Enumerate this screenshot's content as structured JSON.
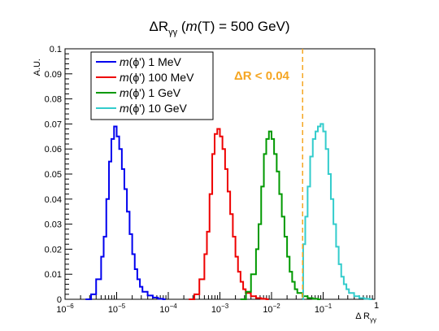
{
  "chart_data": {
    "type": "line",
    "title": {
      "prefix": "ΔR",
      "sub": "γγ",
      "suffix": " (",
      "italic": "m",
      "rest": "(T) = 500 GeV)"
    },
    "xlabel": {
      "prefix": "Δ R",
      "sub": "γγ"
    },
    "ylabel": "A.U.",
    "x_scale": "log",
    "xlim": [
      1e-06,
      1
    ],
    "ylim": [
      0,
      0.1
    ],
    "x_ticks": [
      {
        "base": "10",
        "exp": "−6",
        "value": 1e-06
      },
      {
        "base": "10",
        "exp": "−5",
        "value": 1e-05
      },
      {
        "base": "10",
        "exp": "−4",
        "value": 0.0001
      },
      {
        "base": "10",
        "exp": "−3",
        "value": 0.001
      },
      {
        "base": "10",
        "exp": "−2",
        "value": 0.01
      },
      {
        "base": "10",
        "exp": "−1",
        "value": 0.1
      },
      {
        "base": "",
        "exp": "1",
        "value": 1
      }
    ],
    "y_ticks": [
      "0",
      "0.01",
      "0.02",
      "0.03",
      "0.04",
      "0.05",
      "0.06",
      "0.07",
      "0.08",
      "0.09",
      "0.1"
    ],
    "grid": false,
    "legend_position": "top-left",
    "annotation": {
      "text": "ΔR < 0.04",
      "x_line": 0.04,
      "color": "#f5a623"
    },
    "series": [
      {
        "name_italic": "m",
        "name_rest": "(ϕ') 1 MeV",
        "color": "#0000ee",
        "points": [
          [
            2.5e-06,
            0
          ],
          [
            3.2e-06,
            0.002
          ],
          [
            4e-06,
            0.008
          ],
          [
            5e-06,
            0.017
          ],
          [
            5.6e-06,
            0.025
          ],
          [
            6.3e-06,
            0.04
          ],
          [
            7.1e-06,
            0.055
          ],
          [
            7.9e-06,
            0.064
          ],
          [
            8.9e-06,
            0.069
          ],
          [
            1e-05,
            0.065
          ],
          [
            1.12e-05,
            0.06
          ],
          [
            1.26e-05,
            0.052
          ],
          [
            1.41e-05,
            0.044
          ],
          [
            1.58e-05,
            0.035
          ],
          [
            1.78e-05,
            0.026
          ],
          [
            2e-05,
            0.018
          ],
          [
            2.24e-05,
            0.012
          ],
          [
            2.51e-05,
            0.008
          ],
          [
            2.82e-05,
            0.005
          ],
          [
            3.16e-05,
            0.003
          ],
          [
            3.98e-05,
            0.0015
          ],
          [
            5.01e-05,
            0.0007
          ],
          [
            6.31e-05,
            0.0002
          ],
          [
            7.94e-05,
            0.0
          ]
        ]
      },
      {
        "name_italic": "m",
        "name_rest": "(ϕ') 100 MeV",
        "color": "#ee0000",
        "points": [
          [
            0.00025,
            0
          ],
          [
            0.00032,
            0.002
          ],
          [
            0.0004,
            0.008
          ],
          [
            0.0005,
            0.018
          ],
          [
            0.00056,
            0.027
          ],
          [
            0.00063,
            0.042
          ],
          [
            0.00071,
            0.058
          ],
          [
            0.00079,
            0.066
          ],
          [
            0.00089,
            0.068
          ],
          [
            0.001,
            0.065
          ],
          [
            0.00112,
            0.06
          ],
          [
            0.00126,
            0.052
          ],
          [
            0.00141,
            0.043
          ],
          [
            0.00158,
            0.034
          ],
          [
            0.00178,
            0.025
          ],
          [
            0.002,
            0.017
          ],
          [
            0.00224,
            0.011
          ],
          [
            0.00251,
            0.007
          ],
          [
            0.00282,
            0.004
          ],
          [
            0.00316,
            0.0025
          ],
          [
            0.00398,
            0.0012
          ],
          [
            0.00501,
            0.0005
          ],
          [
            0.00631,
            0.0002
          ],
          [
            0.00794,
            0.0
          ]
        ]
      },
      {
        "name_italic": "m",
        "name_rest": "(ϕ') 1 GeV",
        "color": "#009900",
        "points": [
          [
            0.0025,
            0
          ],
          [
            0.0032,
            0.003
          ],
          [
            0.004,
            0.01
          ],
          [
            0.005,
            0.02
          ],
          [
            0.0056,
            0.03
          ],
          [
            0.0063,
            0.045
          ],
          [
            0.0071,
            0.058
          ],
          [
            0.0079,
            0.064
          ],
          [
            0.0089,
            0.067
          ],
          [
            0.01,
            0.064
          ],
          [
            0.0112,
            0.058
          ],
          [
            0.0126,
            0.051
          ],
          [
            0.0141,
            0.042
          ],
          [
            0.0158,
            0.033
          ],
          [
            0.0178,
            0.025
          ],
          [
            0.02,
            0.017
          ],
          [
            0.0224,
            0.011
          ],
          [
            0.0251,
            0.007
          ],
          [
            0.0282,
            0.004
          ],
          [
            0.0316,
            0.0025
          ],
          [
            0.0398,
            0.0012
          ],
          [
            0.0501,
            0.0005
          ],
          [
            0.0631,
            0.0002
          ],
          [
            0.0794,
            0.0
          ]
        ]
      },
      {
        "name_italic": "m",
        "name_rest": "(ϕ') 10 GeV",
        "color": "#33cccc",
        "points": [
          [
            0.04,
            0.0
          ],
          [
            0.041,
            0.022
          ],
          [
            0.045,
            0.033
          ],
          [
            0.05,
            0.045
          ],
          [
            0.056,
            0.057
          ],
          [
            0.063,
            0.064
          ],
          [
            0.071,
            0.067
          ],
          [
            0.079,
            0.069
          ],
          [
            0.089,
            0.07
          ],
          [
            0.1,
            0.067
          ],
          [
            0.112,
            0.06
          ],
          [
            0.126,
            0.05
          ],
          [
            0.141,
            0.04
          ],
          [
            0.158,
            0.03
          ],
          [
            0.178,
            0.021
          ],
          [
            0.2,
            0.014
          ],
          [
            0.224,
            0.009
          ],
          [
            0.251,
            0.006
          ],
          [
            0.282,
            0.004
          ],
          [
            0.316,
            0.0025
          ],
          [
            0.398,
            0.0012
          ],
          [
            0.501,
            0.0005
          ],
          [
            0.631,
            0.0002
          ],
          [
            0.794,
            0.0
          ]
        ]
      }
    ]
  }
}
